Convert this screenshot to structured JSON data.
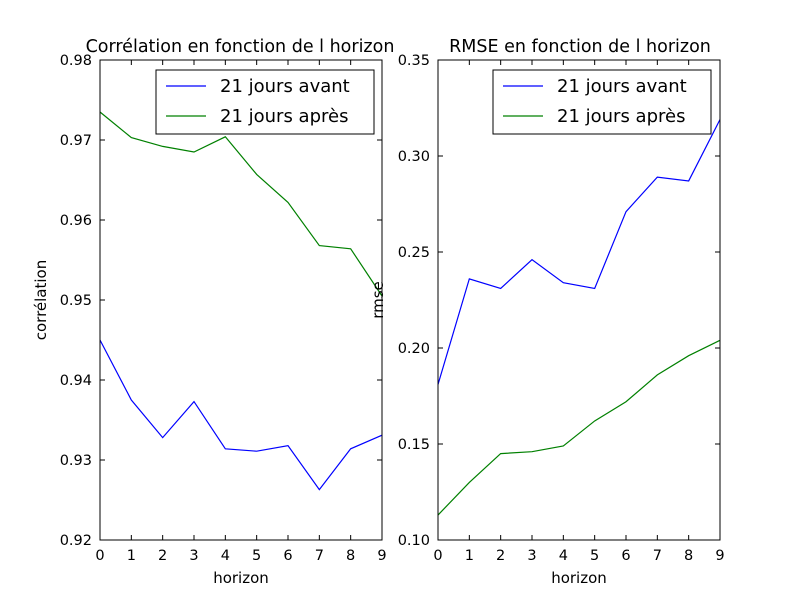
{
  "chart_data": [
    {
      "type": "line",
      "title": "Corrélation en fonction de l horizon",
      "xlabel": "horizon",
      "ylabel": "corrélation",
      "x": [
        0,
        1,
        2,
        3,
        4,
        5,
        6,
        7,
        8,
        9
      ],
      "xlim": [
        0,
        9
      ],
      "ylim": [
        0.92,
        0.98
      ],
      "xticks": [
        "0",
        "1",
        "2",
        "3",
        "4",
        "5",
        "6",
        "7",
        "8",
        "9"
      ],
      "yticks": [
        "0.92",
        "0.93",
        "0.94",
        "0.95",
        "0.96",
        "0.97",
        "0.98"
      ],
      "legend_position": "top-right",
      "grid": false,
      "series": [
        {
          "name": "21 jours avant",
          "color": "#0000ff",
          "values": [
            0.945,
            0.9375,
            0.9328,
            0.9373,
            0.9314,
            0.9311,
            0.9318,
            0.9263,
            0.9314,
            0.9331
          ]
        },
        {
          "name": "21 jours après",
          "color": "#008000",
          "values": [
            0.9735,
            0.9703,
            0.9692,
            0.9685,
            0.9704,
            0.9657,
            0.9622,
            0.9568,
            0.9564,
            0.9505
          ]
        }
      ]
    },
    {
      "type": "line",
      "title": "RMSE en fonction de l horizon",
      "xlabel": "horizon",
      "ylabel": "rmse",
      "x": [
        0,
        1,
        2,
        3,
        4,
        5,
        6,
        7,
        8,
        9
      ],
      "xlim": [
        0,
        9
      ],
      "ylim": [
        0.1,
        0.35
      ],
      "xticks": [
        "0",
        "1",
        "2",
        "3",
        "4",
        "5",
        "6",
        "7",
        "8",
        "9"
      ],
      "yticks": [
        "0.10",
        "0.15",
        "0.20",
        "0.25",
        "0.30",
        "0.35"
      ],
      "legend_position": "top-right",
      "grid": false,
      "series": [
        {
          "name": "21 jours avant",
          "color": "#0000ff",
          "values": [
            0.181,
            0.236,
            0.231,
            0.246,
            0.234,
            0.231,
            0.271,
            0.289,
            0.287,
            0.319
          ]
        },
        {
          "name": "21 jours après",
          "color": "#008000",
          "values": [
            0.113,
            0.13,
            0.145,
            0.146,
            0.149,
            0.162,
            0.172,
            0.186,
            0.196,
            0.204
          ]
        }
      ]
    }
  ]
}
